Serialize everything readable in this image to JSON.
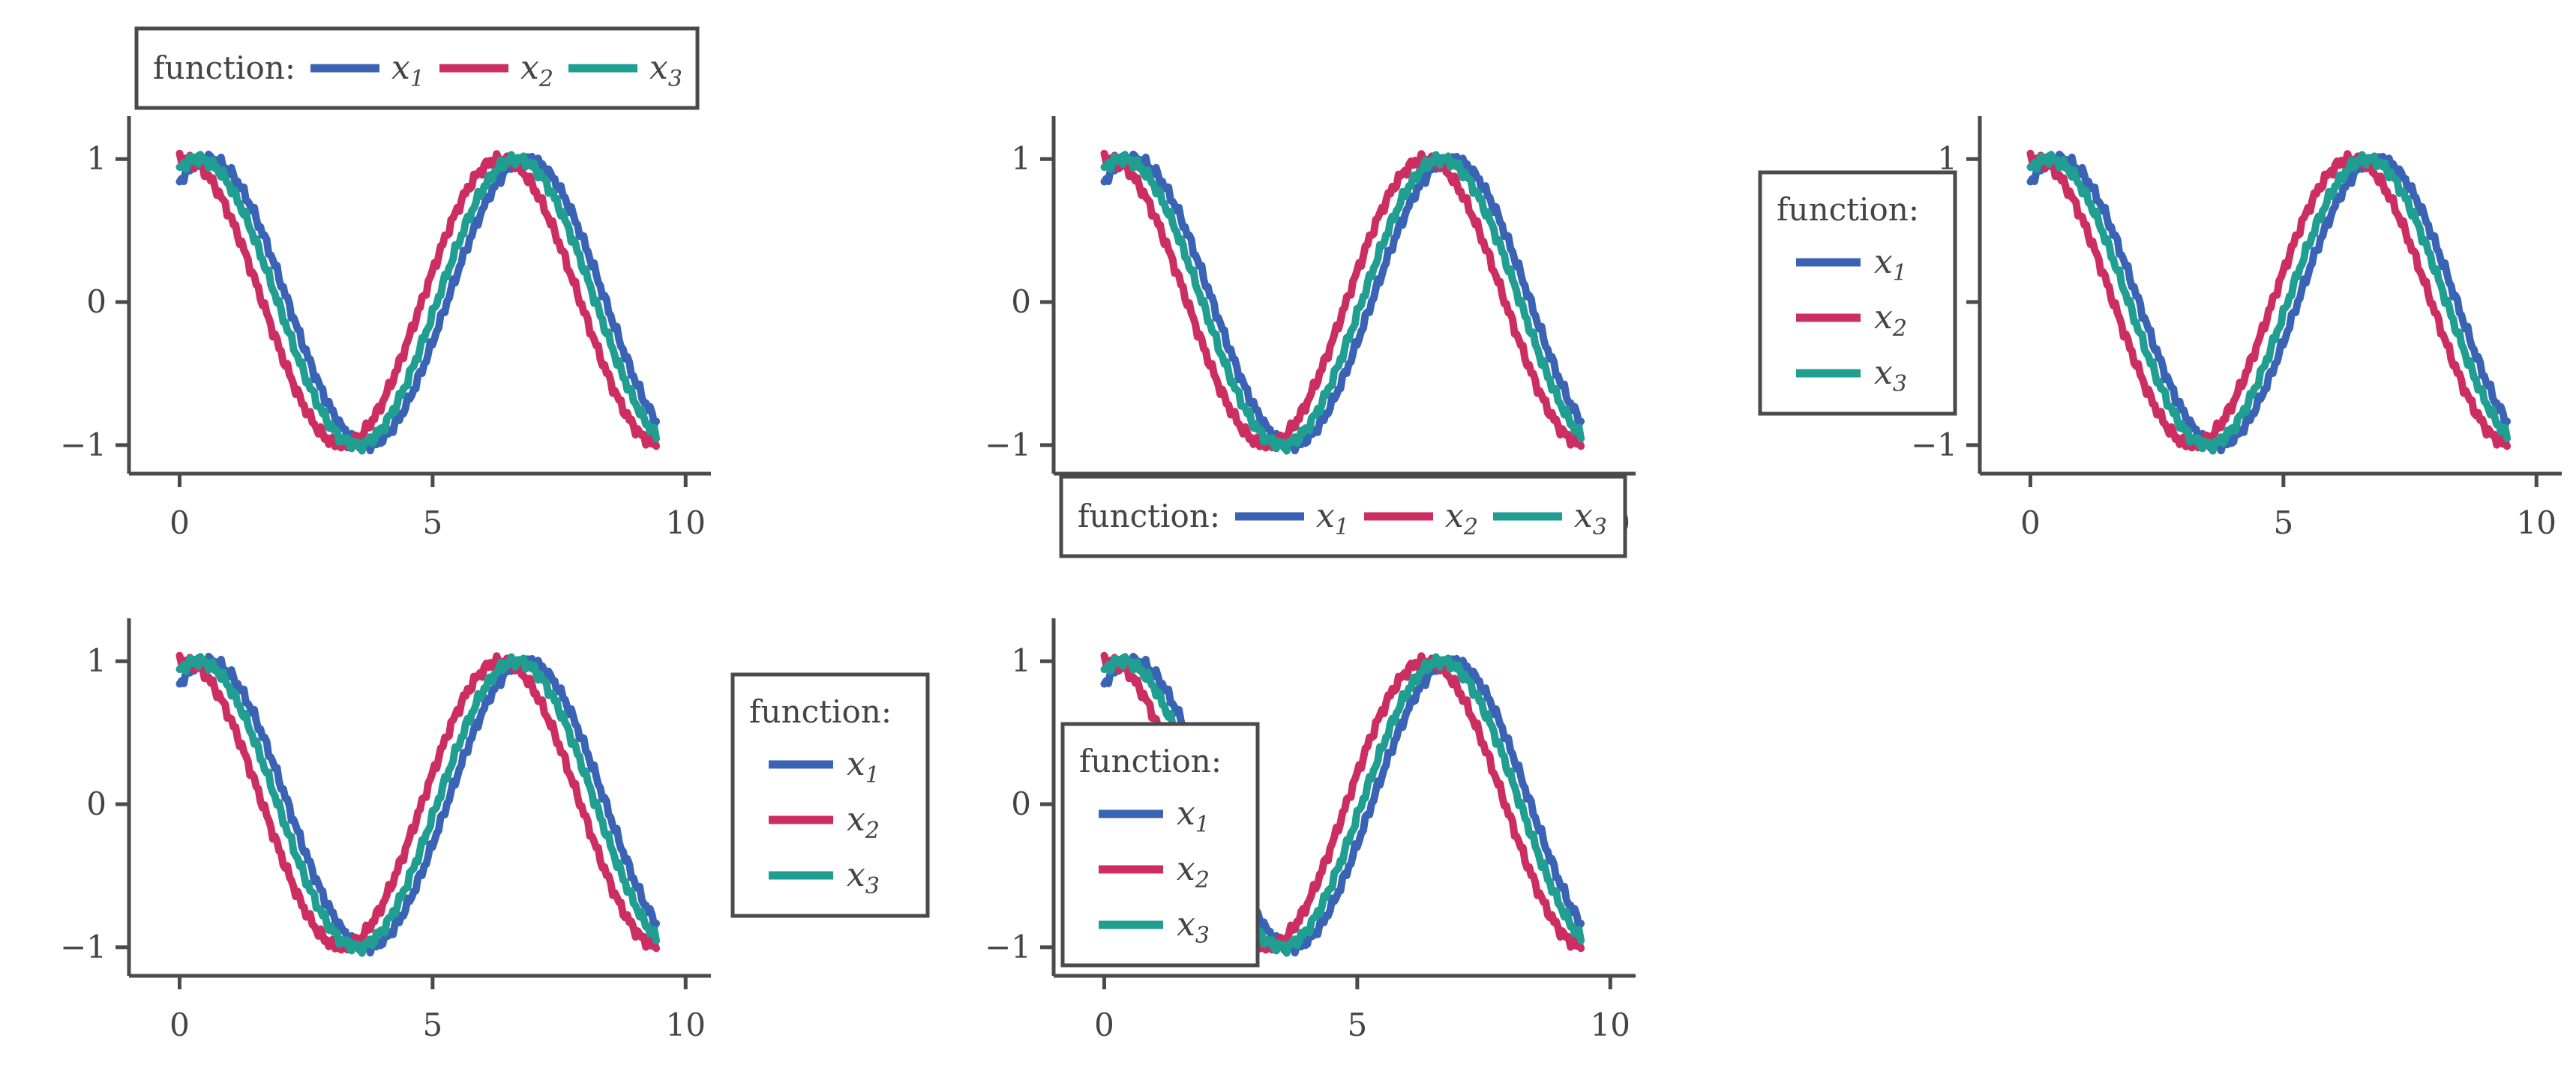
{
  "chart_data": {
    "type": "line",
    "layout": {
      "rows": 2,
      "cols": 3,
      "panels": 5
    },
    "title": "",
    "xlabel": "",
    "ylabel": "",
    "xlim": [
      -1,
      10.5
    ],
    "ylim": [
      -1.2,
      1.3
    ],
    "xticks": [
      0,
      5,
      10
    ],
    "yticks": [
      -1,
      0,
      1
    ],
    "xtick_labels": [
      "0",
      "5",
      "10"
    ],
    "ytick_labels": [
      "−1",
      "0",
      "1"
    ],
    "x_range": [
      0,
      9.42
    ],
    "legend": {
      "title": "function:",
      "entries": [
        {
          "base": "x",
          "sub": "1"
        },
        {
          "base": "x",
          "sub": "2"
        },
        {
          "base": "x",
          "sub": "3"
        }
      ]
    },
    "series": [
      {
        "name": "x₁",
        "color": "#3a63b5",
        "function": "sin(x + 1)",
        "phase": 1.0
      },
      {
        "name": "x₂",
        "color": "#cc2e62",
        "function": "sin(x + 1.5)",
        "phase": 1.5
      },
      {
        "name": "x₃",
        "color": "#1f9e91",
        "function": "sin(x + 1.2)",
        "phase": 1.2
      }
    ],
    "panels": [
      {
        "id": "panel-1",
        "legend_placement": "above, horizontal"
      },
      {
        "id": "panel-2",
        "legend_placement": "below, horizontal"
      },
      {
        "id": "panel-3",
        "legend_placement": "left, vertical"
      },
      {
        "id": "panel-4",
        "legend_placement": "right, vertical"
      },
      {
        "id": "panel-5",
        "legend_placement": "lower-left inside, vertical"
      }
    ],
    "grid": false
  }
}
